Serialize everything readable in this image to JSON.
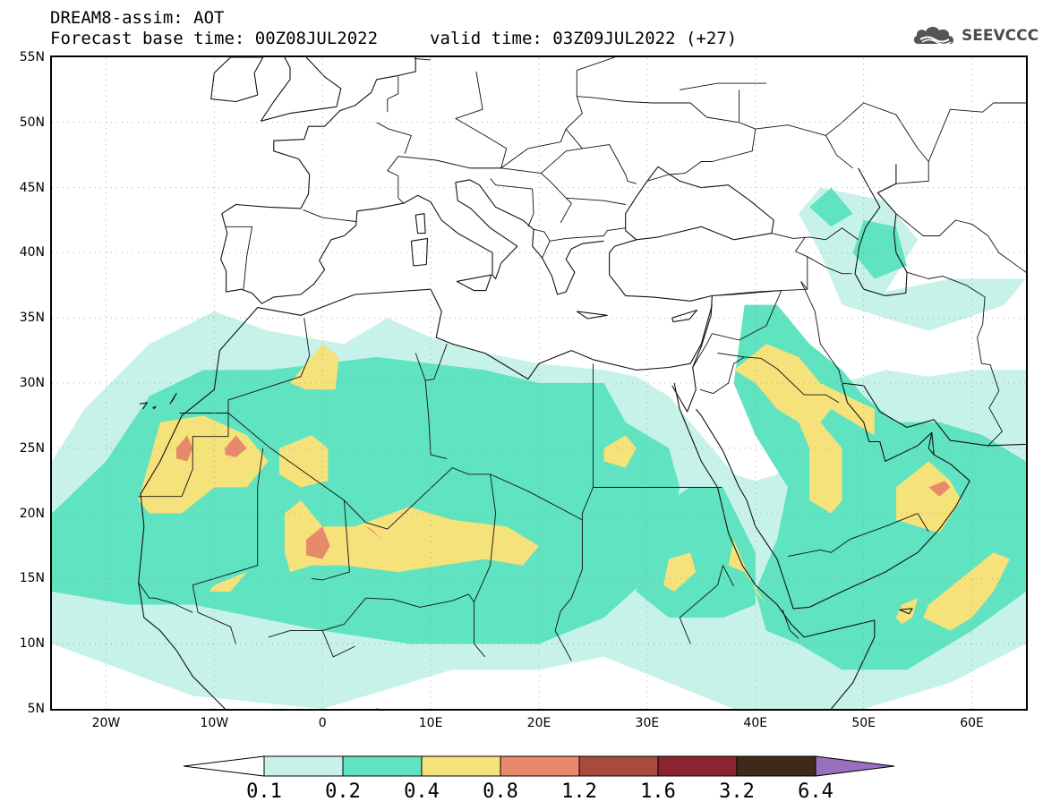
{
  "header": {
    "title": "DREAM8-assim: AOT",
    "forecast_base": "Forecast base time: 00Z08JUL2022",
    "valid_time": "valid time: 03Z09JUL2022 (+27)",
    "logo_text": "SEEVCCC"
  },
  "map": {
    "lat_labels": [
      "55N",
      "50N",
      "45N",
      "40N",
      "35N",
      "30N",
      "25N",
      "20N",
      "15N",
      "10N",
      "5N"
    ],
    "lon_labels": [
      "20W",
      "10W",
      "0",
      "10E",
      "20E",
      "30E",
      "40E",
      "50E",
      "60E"
    ],
    "extent": {
      "lon_min": -25,
      "lon_max": 65,
      "lat_min": 5,
      "lat_max": 55
    },
    "colors": {
      "c0_1": "#c6f2ea",
      "c0_2": "#5fe3c0",
      "c0_4": "#f6e27a",
      "c0_8": "#e8896b",
      "c1_2": "#a84a3e",
      "c1_6": "#8a2433",
      "c3_2": "#3e2a1a",
      "c6_4": "#9b6fbf"
    }
  },
  "colorbar": {
    "labels": [
      "0.1",
      "0.2",
      "0.4",
      "0.8",
      "1.2",
      "1.6",
      "3.2",
      "6.4"
    ],
    "colors": [
      "#c6f2ea",
      "#5fe3c0",
      "#f6e27a",
      "#e8896b",
      "#a84a3e",
      "#8a2433",
      "#3e2a1a"
    ],
    "low_color": "#ffffff",
    "high_color": "#9b6fbf"
  }
}
